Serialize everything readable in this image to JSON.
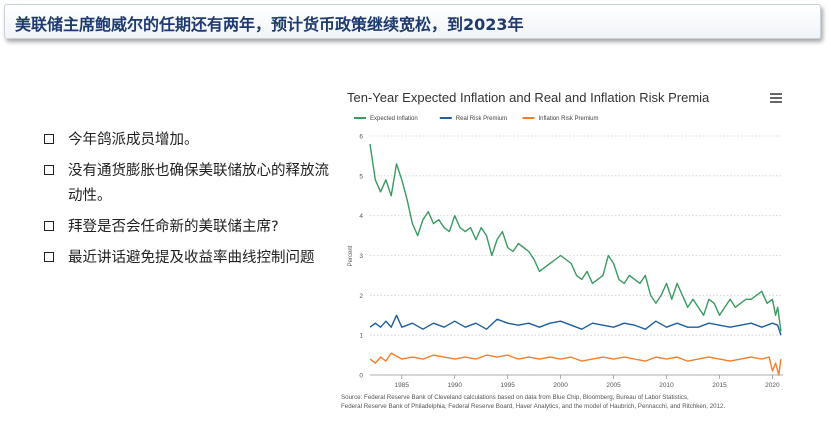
{
  "header": {
    "title": "美联储主席鲍威尔的任期还有两年，预计货币政策继续宽松，到2023年"
  },
  "bullets": [
    "今年鸽派成员增加。",
    "没有通货膨胀也确保美联储放心的释放流动性。",
    "拜登是否会任命新的美联储主席?",
    "最近讲话避免提及收益率曲线控制问题"
  ],
  "source": {
    "line1": "Source: Federal Reserve Bank of Cleveland calculations based on data from Blue Chip, Bloomberg, Bureau of Labor Statistics,",
    "line2": "Federal Reserve Bank of Philadelphia, Federal Reserve Board, Haver Analytics, and the model of Haubrich, Pennacchi, and Ritchken, 2012."
  },
  "colors": {
    "expected": "#3a9a60",
    "real": "#1f5f9e",
    "irp": "#f07f2e",
    "title": "#1f3a6e"
  },
  "chart_data": {
    "type": "line",
    "title": "Ten-Year Expected Inflation and Real and Inflation Risk Premia",
    "xlabel": "",
    "ylabel": "Percent",
    "xlim": [
      1982,
      2021
    ],
    "ylim": [
      0,
      6
    ],
    "xticks": [
      1985,
      1990,
      1995,
      2000,
      2005,
      2010,
      2015,
      2020
    ],
    "yticks": [
      0,
      1,
      2,
      3,
      4,
      5,
      6
    ],
    "grid": "horizontal-dotted",
    "legend_position": "top-left",
    "series": [
      {
        "name": "Expected Inflation",
        "color": "#3a9a60",
        "x": [
          1982,
          1982.5,
          1983,
          1983.5,
          1984,
          1984.5,
          1985,
          1985.5,
          1986,
          1986.5,
          1987,
          1987.5,
          1988,
          1988.5,
          1989,
          1989.5,
          1990,
          1990.5,
          1991,
          1991.5,
          1992,
          1992.5,
          1993,
          1993.5,
          1994,
          1994.5,
          1995,
          1995.5,
          1996,
          1996.5,
          1997,
          1997.5,
          1998,
          1998.5,
          1999,
          1999.5,
          2000,
          2000.5,
          2001,
          2001.5,
          2002,
          2002.5,
          2003,
          2003.5,
          2004,
          2004.5,
          2005,
          2005.5,
          2006,
          2006.5,
          2007,
          2007.5,
          2008,
          2008.5,
          2009,
          2009.5,
          2010,
          2010.5,
          2011,
          2011.5,
          2012,
          2012.5,
          2013,
          2013.5,
          2014,
          2014.5,
          2015,
          2015.5,
          2016,
          2016.5,
          2017,
          2017.5,
          2018,
          2018.5,
          2019,
          2019.5,
          2020,
          2020.3,
          2020.5,
          2020.8
        ],
        "values": [
          5.8,
          4.9,
          4.6,
          4.9,
          4.5,
          5.3,
          4.9,
          4.4,
          3.8,
          3.5,
          3.9,
          4.1,
          3.8,
          3.9,
          3.7,
          3.6,
          4.0,
          3.7,
          3.6,
          3.7,
          3.4,
          3.7,
          3.5,
          3.0,
          3.4,
          3.6,
          3.2,
          3.1,
          3.3,
          3.2,
          3.1,
          2.9,
          2.6,
          2.7,
          2.8,
          2.9,
          3.0,
          2.9,
          2.8,
          2.5,
          2.4,
          2.6,
          2.3,
          2.4,
          2.5,
          3.0,
          2.8,
          2.4,
          2.3,
          2.5,
          2.4,
          2.3,
          2.5,
          2.0,
          1.8,
          2.0,
          2.3,
          1.9,
          2.3,
          2.0,
          1.7,
          1.9,
          1.7,
          1.5,
          1.9,
          1.8,
          1.5,
          1.7,
          1.9,
          1.7,
          1.8,
          1.9,
          1.9,
          2.0,
          2.1,
          1.8,
          1.9,
          1.5,
          1.7,
          1.1
        ]
      },
      {
        "name": "Real Risk Premium",
        "color": "#1f5f9e",
        "x": [
          1982,
          1982.5,
          1983,
          1983.5,
          1984,
          1984.5,
          1985,
          1986,
          1987,
          1988,
          1989,
          1990,
          1991,
          1992,
          1993,
          1994,
          1995,
          1996,
          1997,
          1998,
          1999,
          2000,
          2001,
          2002,
          2003,
          2004,
          2005,
          2006,
          2007,
          2008,
          2009,
          2010,
          2011,
          2012,
          2013,
          2014,
          2015,
          2016,
          2017,
          2018,
          2019,
          2020,
          2020.5,
          2020.8
        ],
        "values": [
          1.2,
          1.3,
          1.2,
          1.35,
          1.2,
          1.5,
          1.2,
          1.3,
          1.15,
          1.3,
          1.2,
          1.35,
          1.2,
          1.3,
          1.15,
          1.4,
          1.3,
          1.25,
          1.3,
          1.2,
          1.3,
          1.35,
          1.25,
          1.15,
          1.3,
          1.25,
          1.2,
          1.3,
          1.25,
          1.15,
          1.35,
          1.2,
          1.3,
          1.2,
          1.2,
          1.3,
          1.25,
          1.2,
          1.25,
          1.3,
          1.2,
          1.3,
          1.25,
          1.0
        ]
      },
      {
        "name": "Inflation Risk Premium",
        "color": "#f07f2e",
        "x": [
          1982,
          1982.5,
          1983,
          1983.5,
          1984,
          1985,
          1986,
          1987,
          1988,
          1989,
          1990,
          1991,
          1992,
          1993,
          1994,
          1995,
          1996,
          1997,
          1998,
          1999,
          2000,
          2001,
          2002,
          2003,
          2004,
          2005,
          2006,
          2007,
          2008,
          2009,
          2010,
          2011,
          2012,
          2013,
          2014,
          2015,
          2016,
          2017,
          2018,
          2019,
          2019.7,
          2020,
          2020.3,
          2020.6,
          2020.8
        ],
        "values": [
          0.4,
          0.3,
          0.45,
          0.35,
          0.55,
          0.4,
          0.45,
          0.4,
          0.5,
          0.45,
          0.4,
          0.45,
          0.4,
          0.5,
          0.45,
          0.5,
          0.4,
          0.45,
          0.4,
          0.45,
          0.4,
          0.45,
          0.35,
          0.4,
          0.45,
          0.4,
          0.45,
          0.4,
          0.35,
          0.45,
          0.4,
          0.45,
          0.35,
          0.4,
          0.45,
          0.4,
          0.35,
          0.4,
          0.45,
          0.4,
          0.45,
          0.1,
          0.3,
          0.0,
          0.4
        ]
      }
    ]
  }
}
